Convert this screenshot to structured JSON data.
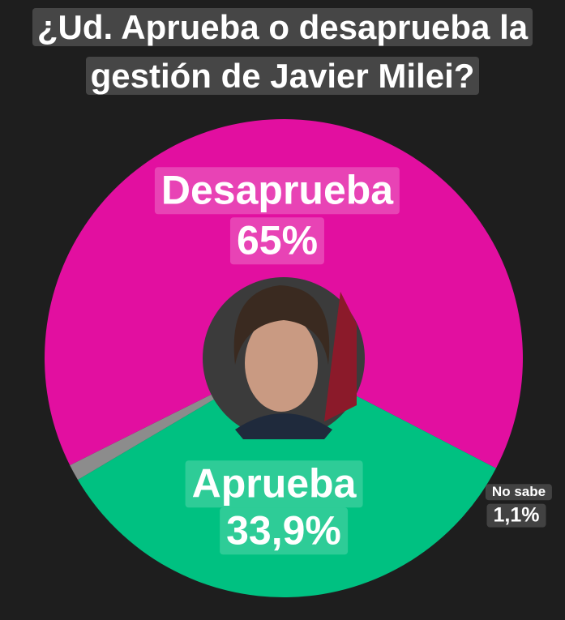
{
  "chart_data": {
    "type": "pie",
    "title": "¿Ud. Aprueba o desaprueba la gestión de Javier Milei?",
    "categories": [
      "Desaprueba",
      "Aprueba",
      "No sabe"
    ],
    "values": [
      65,
      33.9,
      1.1
    ],
    "value_labels": [
      "65%",
      "33,9%",
      "1,1%"
    ],
    "colors": [
      "#e20fa0",
      "#00c181",
      "#8c8c8c"
    ]
  }
}
